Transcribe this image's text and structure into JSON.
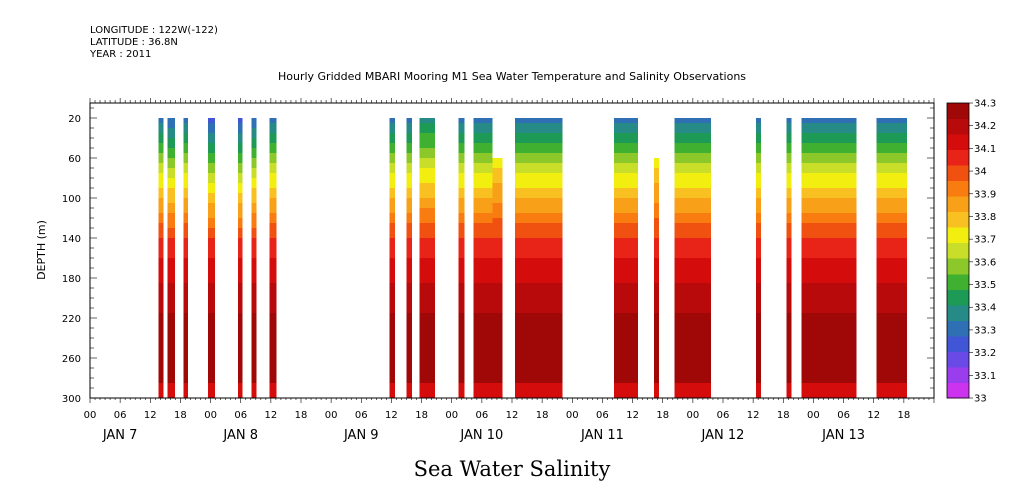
{
  "header": {
    "longitude": "LONGITUDE : 122W(-122)",
    "latitude": "LATITUDE : 36.8N",
    "year": "YEAR : 2011"
  },
  "chart_data": {
    "type": "heatmap",
    "title": "Hourly Gridded MBARI Mooring M1 Sea Water Temperature and Salinity Observations",
    "bottom_title": "Sea Water Salinity",
    "ylabel": "DEPTH (m)",
    "ylim": [
      300,
      5
    ],
    "y_ticks": [
      20,
      60,
      100,
      140,
      180,
      220,
      260,
      300
    ],
    "x_range_hours": [
      -12,
      156
    ],
    "x_hour_ticks": [
      {
        "h": -12,
        "label": "00"
      },
      {
        "h": -6,
        "label": "06"
      },
      {
        "h": 0,
        "label": "12"
      },
      {
        "h": 6,
        "label": "18"
      },
      {
        "h": 12,
        "label": "00"
      },
      {
        "h": 18,
        "label": "06"
      },
      {
        "h": 24,
        "label": "12"
      },
      {
        "h": 30,
        "label": "18"
      },
      {
        "h": 36,
        "label": "00"
      },
      {
        "h": 42,
        "label": "06"
      },
      {
        "h": 48,
        "label": "12"
      },
      {
        "h": 54,
        "label": "18"
      },
      {
        "h": 60,
        "label": "00"
      },
      {
        "h": 66,
        "label": "06"
      },
      {
        "h": 72,
        "label": "12"
      },
      {
        "h": 78,
        "label": "18"
      },
      {
        "h": 84,
        "label": "00"
      },
      {
        "h": 90,
        "label": "06"
      },
      {
        "h": 96,
        "label": "12"
      },
      {
        "h": 102,
        "label": "18"
      },
      {
        "h": 108,
        "label": "00"
      },
      {
        "h": 114,
        "label": "06"
      },
      {
        "h": 120,
        "label": "12"
      },
      {
        "h": 126,
        "label": "18"
      },
      {
        "h": 132,
        "label": "00"
      },
      {
        "h": 138,
        "label": "06"
      },
      {
        "h": 144,
        "label": "12"
      },
      {
        "h": 150,
        "label": "18"
      }
    ],
    "x_day_labels": [
      {
        "h": -6,
        "label": "JAN  7"
      },
      {
        "h": 18,
        "label": "JAN  8"
      },
      {
        "h": 42,
        "label": "JAN  9"
      },
      {
        "h": 66,
        "label": "JAN 10"
      },
      {
        "h": 90,
        "label": "JAN 11"
      },
      {
        "h": 114,
        "label": "JAN 12"
      },
      {
        "h": 138,
        "label": "JAN 13"
      }
    ],
    "colorbar": {
      "levels": [
        33,
        33.1,
        33.2,
        33.3,
        33.4,
        33.5,
        33.6,
        33.7,
        33.8,
        33.9,
        34,
        34.1,
        34.2,
        34.3
      ],
      "labels": [
        "33",
        "33.1",
        "33.2",
        "33.3",
        "33.4",
        "33.5",
        "33.6",
        "33.7",
        "33.8",
        "33.9",
        "34",
        "34.1",
        "34.2",
        "34.3"
      ],
      "colors": [
        "#cc33ee",
        "#9a3ded",
        "#6a4ae6",
        "#4156d6",
        "#2f6fb4",
        "#268a86",
        "#1c9a56",
        "#40b030",
        "#8cc82a",
        "#c8de28",
        "#f2ee10",
        "#f8c020",
        "#f8a018",
        "#f87c10",
        "#f05010",
        "#e82418",
        "#d40c0c",
        "#b80a0a",
        "#a00808"
      ]
    },
    "segments": [
      {
        "start": 1.6,
        "end": 2.6,
        "top": 20,
        "sal_lo": 33.3
      },
      {
        "start": 3.4,
        "end": 4.9,
        "top": 20,
        "sal_lo": 33.25
      },
      {
        "start": 6.6,
        "end": 7.5,
        "top": 20,
        "sal_lo": 33.3
      },
      {
        "start": 11.5,
        "end": 12.9,
        "top": 20,
        "sal_lo": 33.2
      },
      {
        "start": 17.5,
        "end": 18.4,
        "top": 20,
        "sal_lo": 33.2
      },
      {
        "start": 20.1,
        "end": 21.1,
        "top": 20,
        "sal_lo": 33.25
      },
      {
        "start": 23.7,
        "end": 25.1,
        "top": 20,
        "sal_lo": 33.3
      },
      {
        "start": 47.6,
        "end": 48.7,
        "top": 20,
        "sal_lo": 33.3
      },
      {
        "start": 51.0,
        "end": 52.1,
        "top": 20,
        "sal_lo": 33.3
      },
      {
        "start": 53.6,
        "end": 56.7,
        "top": 20,
        "sal_lo": 33.35
      },
      {
        "start": 61.4,
        "end": 62.6,
        "top": 20,
        "sal_lo": 33.3
      },
      {
        "start": 64.3,
        "end": 68.1,
        "top": 20,
        "sal_lo": 33.3
      },
      {
        "start": 68.1,
        "end": 70.1,
        "top": 60,
        "sal_lo": 33.5
      },
      {
        "start": 72.6,
        "end": 82.1,
        "top": 20,
        "sal_lo": 33.3
      },
      {
        "start": 92.3,
        "end": 97.1,
        "top": 20,
        "sal_lo": 33.3
      },
      {
        "start": 100.3,
        "end": 101.3,
        "top": 60,
        "sal_lo": 33.5
      },
      {
        "start": 104.3,
        "end": 111.6,
        "top": 20,
        "sal_lo": 33.3
      },
      {
        "start": 120.6,
        "end": 121.6,
        "top": 20,
        "sal_lo": 33.3
      },
      {
        "start": 126.6,
        "end": 127.6,
        "top": 20,
        "sal_lo": 33.3
      },
      {
        "start": 129.6,
        "end": 140.6,
        "top": 20,
        "sal_lo": 33.3
      },
      {
        "start": 144.6,
        "end": 150.6,
        "top": 20,
        "sal_lo": 33.3
      }
    ],
    "grid": false,
    "legend": "right"
  }
}
